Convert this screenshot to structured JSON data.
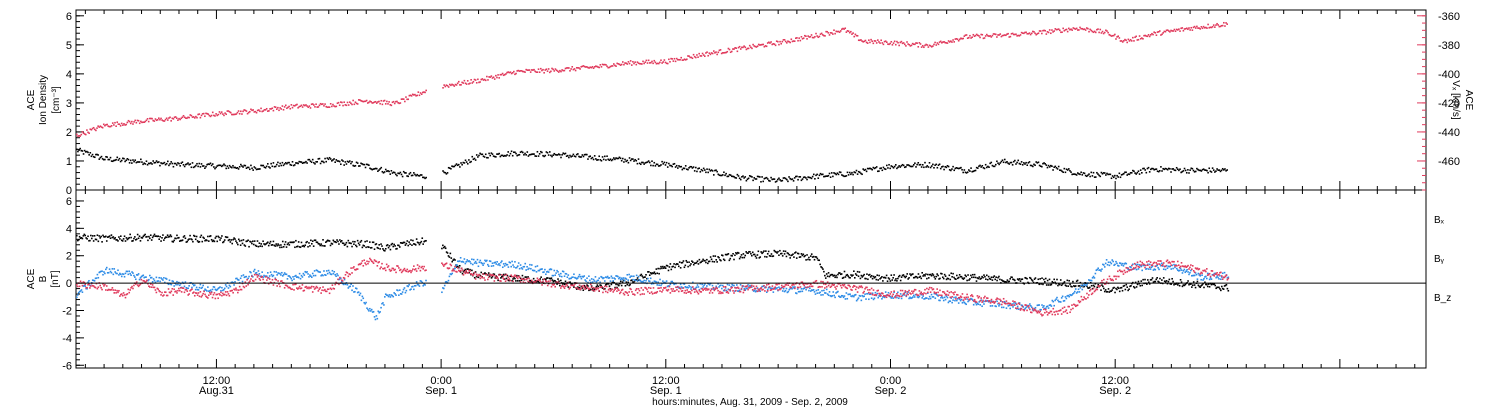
{
  "chart_data": [
    {
      "type": "scatter",
      "panel": "top",
      "ylabel_left": [
        "ACE",
        "Ion Density",
        "[cm⁻³]"
      ],
      "ylabel_right": [
        "ACE",
        "Vₓ [km/s]"
      ],
      "left_axis": {
        "ylim": [
          0,
          6.2
        ],
        "ticks": [
          0,
          1,
          2,
          3,
          4,
          5,
          6
        ]
      },
      "right_axis": {
        "ylim": [
          -480,
          -356
        ],
        "ticks": [
          -360,
          -380,
          -400,
          -420,
          -440,
          -460
        ],
        "color": "#e03a5c",
        "inverted": false
      },
      "x_range_hours": [
        4.5,
        76.6
      ],
      "data_gap_hours": [
        23.2,
        24.0
      ],
      "data_end_hours": 66.0,
      "series": [
        {
          "axis": "left",
          "color": "#000000",
          "points": [
            [
              4.5,
              1.4
            ],
            [
              6,
              1.1
            ],
            [
              8,
              1.0
            ],
            [
              10,
              0.9
            ],
            [
              12,
              0.85
            ],
            [
              14,
              0.8
            ],
            [
              16,
              0.95
            ],
            [
              18,
              1.05
            ],
            [
              20,
              0.85
            ],
            [
              21.5,
              0.6
            ],
            [
              23,
              0.5
            ],
            [
              24,
              0.6
            ],
            [
              26,
              1.2
            ],
            [
              28,
              1.3
            ],
            [
              30,
              1.25
            ],
            [
              32,
              1.15
            ],
            [
              34,
              1.05
            ],
            [
              36,
              0.9
            ],
            [
              38,
              0.7
            ],
            [
              40,
              0.45
            ],
            [
              42,
              0.35
            ],
            [
              44,
              0.5
            ],
            [
              46,
              0.6
            ],
            [
              48,
              0.85
            ],
            [
              50,
              0.9
            ],
            [
              52,
              0.7
            ],
            [
              54,
              1.0
            ],
            [
              56,
              0.9
            ],
            [
              58,
              0.6
            ],
            [
              60,
              0.5
            ],
            [
              62,
              0.75
            ],
            [
              64,
              0.7
            ],
            [
              66,
              0.7
            ]
          ]
        },
        {
          "axis": "right",
          "color": "#e03a5c",
          "points": [
            [
              4.5,
              -442
            ],
            [
              6,
              -435
            ],
            [
              8,
              -432
            ],
            [
              10,
              -430
            ],
            [
              12,
              -427
            ],
            [
              14,
              -425
            ],
            [
              16,
              -422
            ],
            [
              18,
              -421
            ],
            [
              20,
              -418
            ],
            [
              21.5,
              -420
            ],
            [
              23,
              -412
            ],
            [
              24,
              -408
            ],
            [
              26,
              -404
            ],
            [
              28,
              -398
            ],
            [
              30,
              -397
            ],
            [
              32,
              -395
            ],
            [
              34,
              -392
            ],
            [
              36,
              -391
            ],
            [
              38,
              -386
            ],
            [
              40,
              -382
            ],
            [
              42,
              -378
            ],
            [
              44,
              -373
            ],
            [
              45.5,
              -369
            ],
            [
              46.5,
              -377
            ],
            [
              48,
              -378
            ],
            [
              50,
              -380
            ],
            [
              52,
              -374
            ],
            [
              54,
              -373
            ],
            [
              56,
              -371
            ],
            [
              58,
              -368
            ],
            [
              59.5,
              -371
            ],
            [
              60.5,
              -377
            ],
            [
              62,
              -372
            ],
            [
              64,
              -368
            ],
            [
              66,
              -365
            ]
          ]
        }
      ]
    },
    {
      "type": "line",
      "panel": "bottom",
      "ylabel": [
        "ACE",
        "B",
        "[nT]"
      ],
      "ylim": [
        -6.2,
        6.8
      ],
      "ticks": [
        6,
        4,
        2,
        0,
        -2,
        -4,
        -6
      ],
      "x_range_hours": [
        4.5,
        76.6
      ],
      "data_gap_hours": [
        23.2,
        24.0
      ],
      "data_end_hours": 66.0,
      "series": [
        {
          "name": "Bₓ",
          "color": "#000000",
          "points": [
            [
              4.5,
              3.4
            ],
            [
              6,
              3.3
            ],
            [
              8,
              3.4
            ],
            [
              10,
              3.3
            ],
            [
              12,
              3.3
            ],
            [
              14,
              2.9
            ],
            [
              16,
              2.9
            ],
            [
              18,
              3.0
            ],
            [
              20,
              2.9
            ],
            [
              21,
              2.6
            ],
            [
              22,
              2.9
            ],
            [
              23,
              3.1
            ],
            [
              24,
              2.8
            ],
            [
              25,
              1.0
            ],
            [
              26,
              0.6
            ],
            [
              28,
              0.4
            ],
            [
              30,
              0.2
            ],
            [
              32,
              -0.4
            ],
            [
              34,
              0.1
            ],
            [
              36,
              1.2
            ],
            [
              38,
              1.7
            ],
            [
              40,
              2.1
            ],
            [
              42,
              2.2
            ],
            [
              44,
              1.9
            ],
            [
              44.5,
              0.6
            ],
            [
              46,
              0.7
            ],
            [
              48,
              0.4
            ],
            [
              50,
              0.6
            ],
            [
              52,
              0.5
            ],
            [
              54,
              0.3
            ],
            [
              56,
              0.2
            ],
            [
              58,
              0.0
            ],
            [
              60,
              -0.5
            ],
            [
              62,
              0.3
            ],
            [
              64,
              0.0
            ],
            [
              66,
              -0.3
            ]
          ]
        },
        {
          "name": "Bᵧ",
          "color": "#2e8ce6",
          "points": [
            [
              4.5,
              -0.8
            ],
            [
              6,
              1.0
            ],
            [
              8,
              0.5
            ],
            [
              10,
              0.0
            ],
            [
              12,
              -0.5
            ],
            [
              14,
              0.8
            ],
            [
              16,
              0.5
            ],
            [
              18,
              0.9
            ],
            [
              19.5,
              -0.6
            ],
            [
              20.5,
              -2.5
            ],
            [
              21,
              -1.0
            ],
            [
              23,
              0.1
            ],
            [
              24,
              -0.5
            ],
            [
              25,
              1.8
            ],
            [
              26,
              1.5
            ],
            [
              28,
              1.4
            ],
            [
              30,
              0.8
            ],
            [
              32,
              0.3
            ],
            [
              34,
              0.5
            ],
            [
              36,
              0.0
            ],
            [
              38,
              -0.2
            ],
            [
              40,
              -0.3
            ],
            [
              42,
              -0.4
            ],
            [
              44,
              -0.5
            ],
            [
              46,
              -1.0
            ],
            [
              48,
              -0.8
            ],
            [
              50,
              -0.9
            ],
            [
              52,
              -1.3
            ],
            [
              54,
              -1.5
            ],
            [
              56,
              -1.8
            ],
            [
              58,
              -0.5
            ],
            [
              59.5,
              1.6
            ],
            [
              61,
              1.2
            ],
            [
              63,
              1.3
            ],
            [
              64.5,
              0.5
            ],
            [
              66,
              0.6
            ]
          ]
        },
        {
          "name": "B_z",
          "color": "#e03a5c",
          "points": [
            [
              4.5,
              0.0
            ],
            [
              6,
              -0.2
            ],
            [
              7,
              -0.9
            ],
            [
              8,
              0.3
            ],
            [
              9,
              -0.7
            ],
            [
              10,
              -0.5
            ],
            [
              12,
              -0.9
            ],
            [
              13,
              -0.5
            ],
            [
              14,
              0.5
            ],
            [
              16,
              -0.2
            ],
            [
              18,
              -0.5
            ],
            [
              19,
              0.8
            ],
            [
              20,
              1.7
            ],
            [
              21,
              1.2
            ],
            [
              22,
              1.0
            ],
            [
              24,
              1.4
            ],
            [
              26,
              0.5
            ],
            [
              28,
              0.4
            ],
            [
              30,
              0.0
            ],
            [
              32,
              -0.3
            ],
            [
              34,
              -0.6
            ],
            [
              36,
              -0.4
            ],
            [
              38,
              -0.5
            ],
            [
              40,
              -0.4
            ],
            [
              42,
              -0.2
            ],
            [
              44,
              0.0
            ],
            [
              46,
              -0.3
            ],
            [
              48,
              -0.8
            ],
            [
              50,
              -0.5
            ],
            [
              52,
              -1.0
            ],
            [
              54,
              -1.3
            ],
            [
              56,
              -2.1
            ],
            [
              57.5,
              -1.9
            ],
            [
              59,
              -0.2
            ],
            [
              61,
              1.4
            ],
            [
              63,
              1.5
            ],
            [
              65,
              0.8
            ],
            [
              66,
              0.5
            ]
          ]
        }
      ]
    }
  ],
  "x_axis": {
    "ticks": [
      {
        "hour": 12,
        "time": "12:00",
        "date": "Aug.31"
      },
      {
        "hour": 24,
        "time": "0:00",
        "date": "Sep. 1"
      },
      {
        "hour": 36,
        "time": "12:00",
        "date": "Sep. 1"
      },
      {
        "hour": 48,
        "time": "0:00",
        "date": "Sep. 2"
      },
      {
        "hour": 60,
        "time": "12:00",
        "date": "Sep. 2"
      }
    ],
    "label": "hours:minutes, Aug. 31, 2009 - Sep.  2, 2009"
  },
  "legend": [
    "Bₓ",
    "Bᵧ",
    "B_z"
  ]
}
